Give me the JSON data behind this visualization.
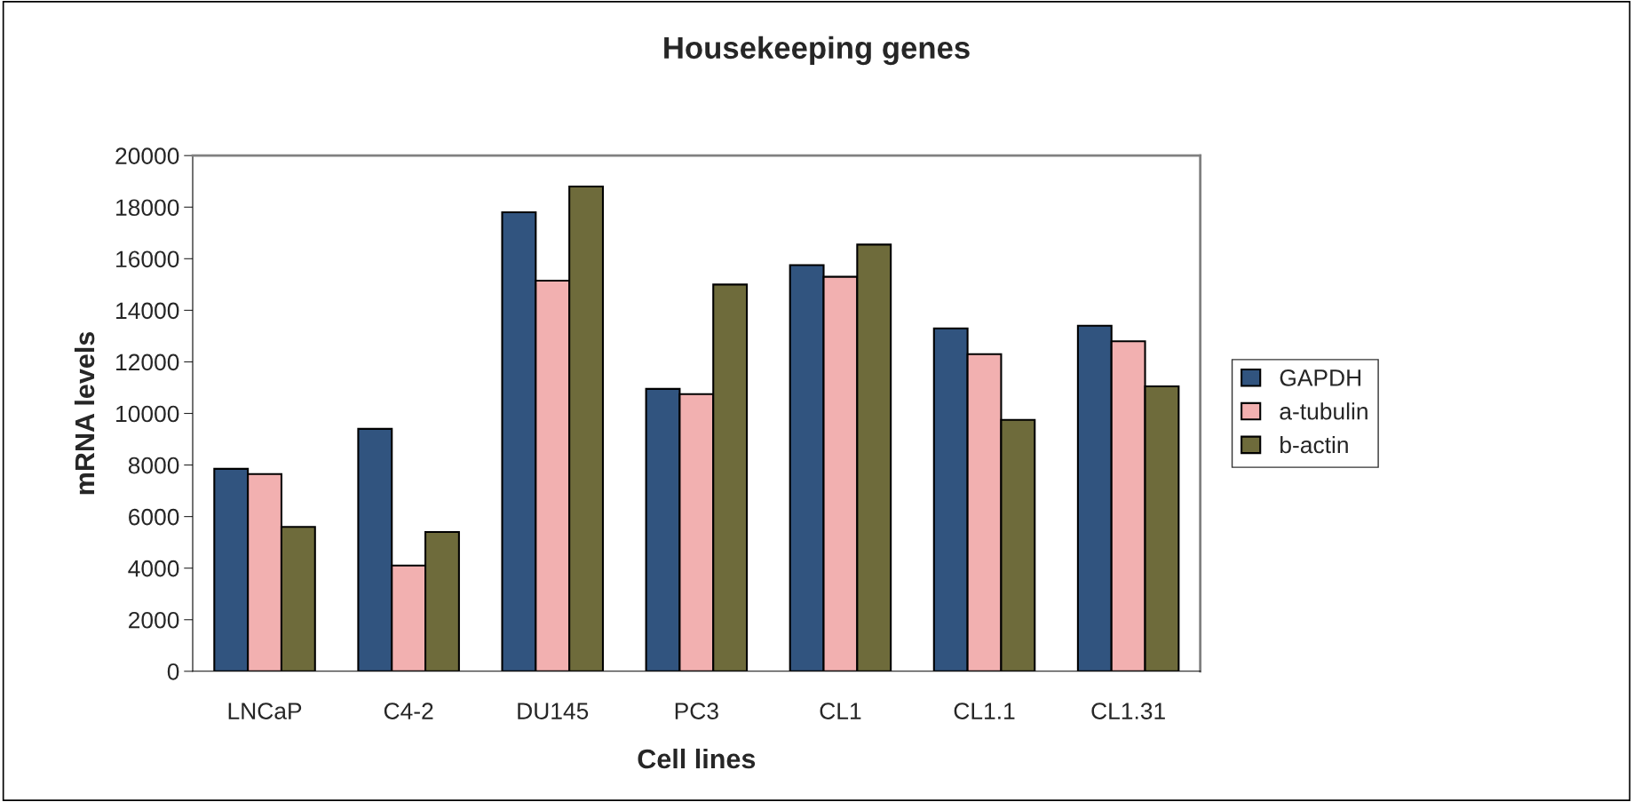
{
  "chart_data": {
    "type": "bar",
    "title": "Housekeeping genes",
    "xlabel": "Cell lines",
    "ylabel": "mRNA levels",
    "categories": [
      "LNCaP",
      "C4-2",
      "DU145",
      "PC3",
      "CL1",
      "CL1.1",
      "CL1.31"
    ],
    "series": [
      {
        "name": "GAPDH",
        "color": "#31547f",
        "values": [
          7850,
          9400,
          17800,
          10950,
          15750,
          13300,
          13400
        ]
      },
      {
        "name": "a-tubulin",
        "color": "#f2b0b0",
        "values": [
          7650,
          4100,
          15150,
          10750,
          15300,
          12300,
          12800
        ]
      },
      {
        "name": "b-actin",
        "color": "#6e6b3b",
        "values": [
          5600,
          5400,
          18800,
          15000,
          16550,
          9750,
          11050
        ]
      }
    ],
    "ylim": [
      0,
      20000
    ],
    "yticks": [
      0,
      2000,
      4000,
      6000,
      8000,
      10000,
      12000,
      14000,
      16000,
      18000,
      20000
    ],
    "grid": false,
    "legend": "right"
  }
}
